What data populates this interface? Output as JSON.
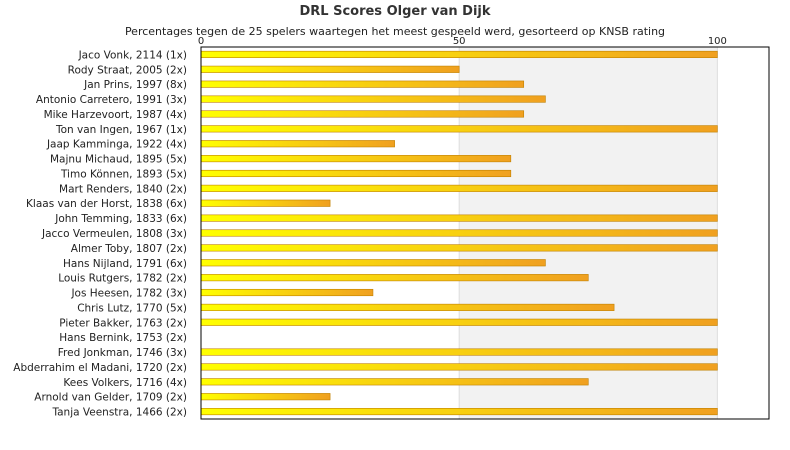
{
  "chart_data": {
    "type": "bar",
    "orientation": "horizontal",
    "title": "DRL Scores Olger van Dijk",
    "subtitle": "Percentages tegen de 25 spelers waartegen het meest gespeeld werd, gesorteerd op KNSB rating",
    "xlim": [
      0,
      110
    ],
    "ticks": [
      0,
      50,
      100
    ],
    "categories": [
      "Jaco Vonk, 2114 (1x)",
      "Rody Straat, 2005 (2x)",
      "Jan Prins, 1997 (8x)",
      "Antonio Carretero, 1991 (3x)",
      "Mike Harzevoort, 1987 (4x)",
      "Ton van Ingen, 1967 (1x)",
      "Jaap Kamminga, 1922 (4x)",
      "Majnu Michaud, 1895 (5x)",
      "Timo Können, 1893 (5x)",
      "Mart Renders, 1840 (2x)",
      "Klaas van der Horst, 1838 (6x)",
      "John Temming, 1833 (6x)",
      "Jacco Vermeulen, 1808 (3x)",
      "Almer Toby, 1807 (2x)",
      "Hans Nijland, 1791 (6x)",
      "Louis Rutgers, 1782 (2x)",
      "Jos Heesen, 1782 (3x)",
      "Chris Lutz, 1770 (5x)",
      "Pieter Bakker, 1763 (2x)",
      "Hans Bernink, 1753 (2x)",
      "Fred Jonkman, 1746 (3x)",
      "Abderrahim el Madani, 1720 (2x)",
      "Kees Volkers, 1716 (4x)",
      "Arnold van Gelder, 1709 (2x)",
      "Tanja Veenstra, 1466 (2x)"
    ],
    "values": [
      100,
      50,
      62.5,
      66.7,
      62.5,
      100,
      37.5,
      60,
      60,
      100,
      25,
      100,
      100,
      100,
      66.7,
      75,
      33.3,
      80,
      100,
      0,
      100,
      100,
      75,
      25,
      100
    ],
    "colors": {
      "bar_start": "#ffff00",
      "bar_end": "#f0a020",
      "bar_stroke": "#c08000",
      "band_alt": "#f2f2f2",
      "gridline": "#dddddd",
      "frame": "#000000"
    },
    "grid": true,
    "legend": "none"
  }
}
